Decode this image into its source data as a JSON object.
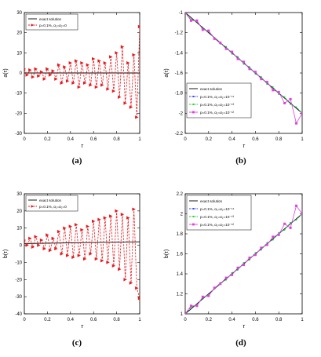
{
  "chart_data": [
    {
      "type": "line",
      "panel_label": "(a)",
      "xlabel": "τ",
      "ylabel": "a(τ)",
      "xlim": [
        0,
        1
      ],
      "ylim": [
        -30,
        30
      ],
      "xticks": [
        "0",
        "0.2",
        "0.4",
        "0.6",
        "0.8",
        "1"
      ],
      "yticks": [
        "-30",
        "-20",
        "-10",
        "0",
        "10",
        "20",
        "30"
      ],
      "legend_position": "top-left",
      "series": [
        {
          "name": "exact solution",
          "color": "#000000",
          "style": "solid",
          "x": [
            0,
            1
          ],
          "y": [
            0,
            0
          ]
        },
        {
          "name": "p=0.1%, α₁=α₂=0",
          "color": "#e8191c",
          "style": "dashed",
          "marker": "triangle",
          "x": [
            0,
            0.025,
            0.05,
            0.075,
            0.1,
            0.125,
            0.15,
            0.175,
            0.2,
            0.225,
            0.25,
            0.275,
            0.3,
            0.325,
            0.35,
            0.375,
            0.4,
            0.425,
            0.45,
            0.475,
            0.5,
            0.525,
            0.55,
            0.575,
            0.6,
            0.625,
            0.65,
            0.675,
            0.7,
            0.725,
            0.75,
            0.775,
            0.8,
            0.825,
            0.85,
            0.875,
            0.9,
            0.925,
            0.95,
            0.975,
            1
          ],
          "y": [
            2,
            -1,
            1.5,
            -2,
            2,
            -1.5,
            0.5,
            -3,
            2,
            -1,
            1,
            -3,
            4,
            -5,
            3,
            -4,
            5,
            -5,
            6,
            -7,
            5,
            -5,
            4,
            -6,
            7,
            -7,
            6,
            -6,
            5,
            -8,
            8,
            -9,
            10,
            -12,
            13,
            -15,
            5,
            -17,
            9,
            -22,
            23
          ]
        }
      ]
    },
    {
      "type": "line",
      "panel_label": "(b)",
      "xlabel": "τ",
      "ylabel": "a(τ)",
      "xlim": [
        0,
        1
      ],
      "ylim": [
        -2.2,
        -1
      ],
      "xticks": [
        "0",
        "0.2",
        "0.4",
        "0.6",
        "0.8",
        "1"
      ],
      "yticks": [
        "-1",
        "-1.2",
        "-1.4",
        "-1.6",
        "-1.8",
        "-2",
        "-2.2"
      ],
      "legend_position": "bottom-left",
      "series": [
        {
          "name": "exact solution",
          "color": "#000000",
          "style": "solid",
          "x": [
            0,
            1
          ],
          "y": [
            -1,
            -2
          ]
        },
        {
          "name": "p=0.1%, α₁=α₂=10⁻¹⁴",
          "color": "#2b3df0",
          "style": "dashed",
          "marker": "point",
          "x": [
            0,
            0.05,
            0.1,
            0.15,
            0.2,
            0.25,
            0.3,
            0.35,
            0.4,
            0.45,
            0.5,
            0.55,
            0.6,
            0.65,
            0.7,
            0.75,
            0.8,
            0.85,
            0.9,
            0.95,
            1
          ],
          "y": [
            -1.0,
            -1.07,
            -1.09,
            -1.16,
            -1.19,
            -1.25,
            -1.31,
            -1.34,
            -1.41,
            -1.44,
            -1.51,
            -1.54,
            -1.61,
            -1.64,
            -1.71,
            -1.74,
            -1.81,
            -1.84,
            -1.91,
            -1.94,
            -2.0
          ]
        },
        {
          "name": "p=0.1%, α₁=α₂=10⁻¹³",
          "color": "#1ecb2e",
          "style": "dashed",
          "marker": "point",
          "x": [
            0,
            0.05,
            0.1,
            0.15,
            0.2,
            0.25,
            0.3,
            0.35,
            0.4,
            0.45,
            0.5,
            0.55,
            0.6,
            0.65,
            0.7,
            0.75,
            0.8,
            0.85,
            0.9,
            0.95,
            1
          ],
          "y": [
            -1.0,
            -1.07,
            -1.09,
            -1.16,
            -1.19,
            -1.25,
            -1.31,
            -1.34,
            -1.41,
            -1.44,
            -1.51,
            -1.54,
            -1.61,
            -1.64,
            -1.71,
            -1.74,
            -1.81,
            -1.84,
            -1.91,
            -1.94,
            -2.0
          ]
        },
        {
          "name": "p=0.1%, α₁=α₂=10⁻¹²",
          "color": "#e040e0",
          "style": "solid",
          "marker": "square",
          "x": [
            0,
            0.05,
            0.1,
            0.15,
            0.2,
            0.25,
            0.3,
            0.35,
            0.4,
            0.45,
            0.5,
            0.55,
            0.6,
            0.65,
            0.7,
            0.75,
            0.8,
            0.85,
            0.9,
            0.95,
            1
          ],
          "y": [
            -1.0,
            -1.08,
            -1.08,
            -1.17,
            -1.18,
            -1.26,
            -1.3,
            -1.36,
            -1.39,
            -1.46,
            -1.49,
            -1.56,
            -1.59,
            -1.66,
            -1.69,
            -1.77,
            -1.79,
            -1.9,
            -1.86,
            -2.1,
            -2.0
          ]
        }
      ]
    },
    {
      "type": "line",
      "panel_label": "(c)",
      "xlabel": "τ",
      "ylabel": "b(τ)",
      "xlim": [
        0,
        1
      ],
      "ylim": [
        -40,
        30
      ],
      "xticks": [
        "0",
        "0.2",
        "0.4",
        "0.6",
        "0.8",
        "1"
      ],
      "yticks": [
        "-40",
        "-30",
        "-20",
        "-10",
        "0",
        "10",
        "20",
        "30"
      ],
      "legend_position": "top-left",
      "series": [
        {
          "name": "exact solution",
          "color": "#000000",
          "style": "solid",
          "x": [
            0,
            1
          ],
          "y": [
            1,
            2
          ]
        },
        {
          "name": "p=0.1%, α₁=α₂=0",
          "color": "#e8191c",
          "style": "dashed",
          "marker": "triangle",
          "x": [
            0,
            0.025,
            0.05,
            0.075,
            0.1,
            0.125,
            0.15,
            0.175,
            0.2,
            0.225,
            0.25,
            0.275,
            0.3,
            0.325,
            0.35,
            0.375,
            0.4,
            0.425,
            0.45,
            0.475,
            0.5,
            0.525,
            0.55,
            0.575,
            0.6,
            0.625,
            0.65,
            0.675,
            0.7,
            0.725,
            0.75,
            0.775,
            0.8,
            0.825,
            0.85,
            0.875,
            0.9,
            0.925,
            0.95,
            0.975,
            1
          ],
          "y": [
            3,
            0,
            4,
            -1,
            5,
            0,
            3,
            -2,
            6,
            -3,
            4,
            -2,
            8,
            -5,
            10,
            -6,
            11,
            -7,
            12,
            -6,
            9,
            -8,
            11,
            -5,
            14,
            -8,
            15,
            -9,
            16,
            -10,
            17,
            -12,
            20,
            -14,
            18,
            -20,
            16,
            -22,
            21,
            -25,
            -31
          ]
        }
      ]
    },
    {
      "type": "line",
      "panel_label": "(d)",
      "xlabel": "τ",
      "ylabel": "b(τ)",
      "xlim": [
        0,
        1
      ],
      "ylim": [
        1,
        2.2
      ],
      "xticks": [
        "0",
        "0.2",
        "0.4",
        "0.6",
        "0.8",
        "1"
      ],
      "yticks": [
        "1",
        "1.2",
        "1.4",
        "1.6",
        "1.8",
        "2",
        "2.2"
      ],
      "legend_position": "top-left",
      "series": [
        {
          "name": "exact solution",
          "color": "#000000",
          "style": "solid",
          "x": [
            0,
            1
          ],
          "y": [
            1,
            2
          ]
        },
        {
          "name": "p=0.1%, α₁=α₂=10⁻¹⁴",
          "color": "#2b3df0",
          "style": "dashed",
          "marker": "point",
          "x": [
            0,
            0.05,
            0.1,
            0.15,
            0.2,
            0.25,
            0.3,
            0.35,
            0.4,
            0.45,
            0.5,
            0.55,
            0.6,
            0.65,
            0.7,
            0.75,
            0.8,
            0.85,
            0.9,
            0.95,
            1
          ],
          "y": [
            1.0,
            1.07,
            1.09,
            1.16,
            1.19,
            1.25,
            1.31,
            1.34,
            1.41,
            1.44,
            1.51,
            1.54,
            1.61,
            1.64,
            1.71,
            1.74,
            1.81,
            1.84,
            1.91,
            1.94,
            2.0
          ]
        },
        {
          "name": "p=0.1%, α₁=α₂=10⁻¹³",
          "color": "#1ecb2e",
          "style": "dashed",
          "marker": "point",
          "x": [
            0,
            0.05,
            0.1,
            0.15,
            0.2,
            0.25,
            0.3,
            0.35,
            0.4,
            0.45,
            0.5,
            0.55,
            0.6,
            0.65,
            0.7,
            0.75,
            0.8,
            0.85,
            0.9,
            0.95,
            1
          ],
          "y": [
            1.0,
            1.07,
            1.09,
            1.16,
            1.19,
            1.25,
            1.31,
            1.34,
            1.41,
            1.44,
            1.51,
            1.54,
            1.61,
            1.64,
            1.71,
            1.74,
            1.81,
            1.84,
            1.91,
            1.94,
            2.0
          ]
        },
        {
          "name": "p=0.1%, α₁=α₂=10⁻¹²",
          "color": "#e040e0",
          "style": "solid",
          "marker": "square",
          "x": [
            0,
            0.05,
            0.1,
            0.15,
            0.2,
            0.25,
            0.3,
            0.35,
            0.4,
            0.45,
            0.5,
            0.55,
            0.6,
            0.65,
            0.7,
            0.75,
            0.8,
            0.85,
            0.9,
            0.95,
            1
          ],
          "y": [
            1.0,
            1.08,
            1.08,
            1.17,
            1.18,
            1.26,
            1.3,
            1.36,
            1.39,
            1.46,
            1.49,
            1.56,
            1.59,
            1.66,
            1.69,
            1.77,
            1.79,
            1.9,
            1.86,
            2.08,
            2.0
          ]
        }
      ]
    }
  ]
}
